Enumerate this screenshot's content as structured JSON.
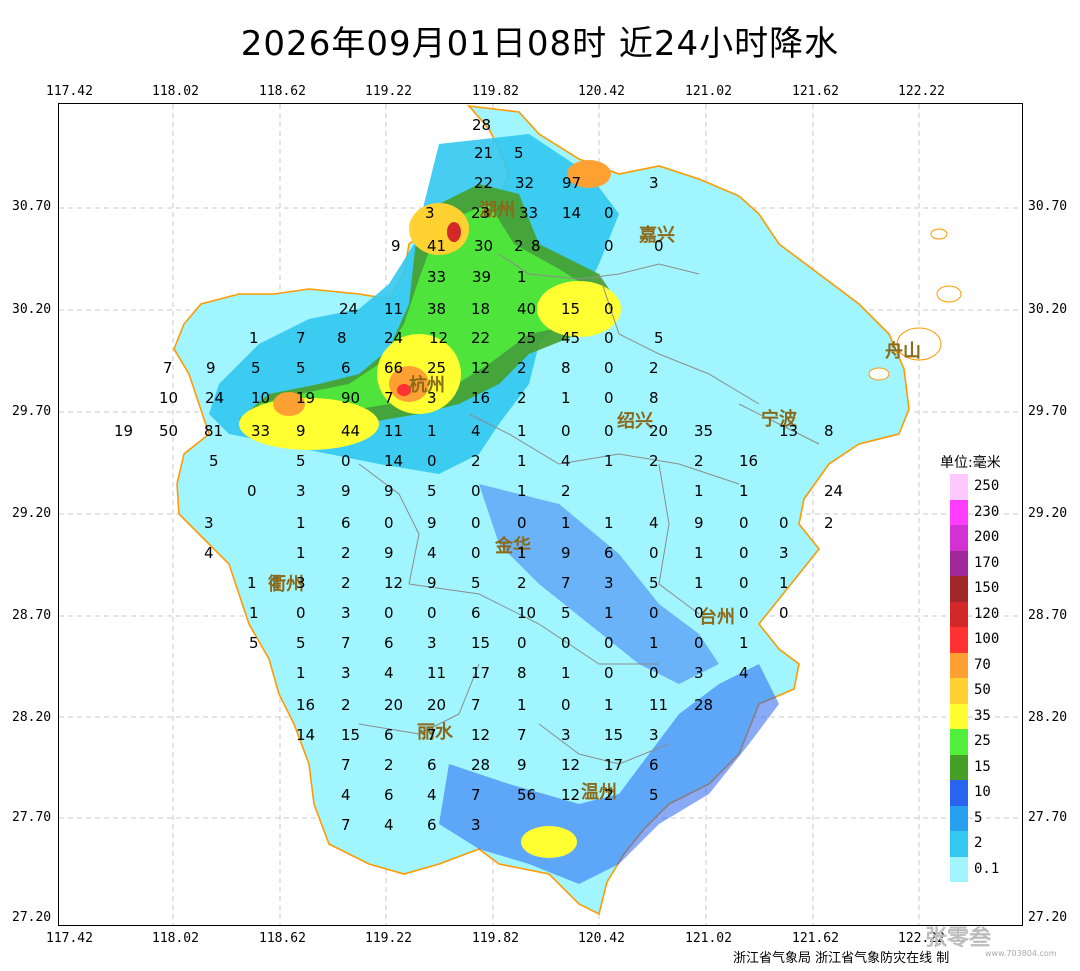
{
  "title": "2026年09月01日08时  近24小时降水",
  "lon_ticks": [
    "117.42",
    "118.02",
    "118.62",
    "119.22",
    "119.82",
    "120.42",
    "121.02",
    "121.62",
    "122.22"
  ],
  "lat_ticks": [
    "30.70",
    "30.20",
    "29.70",
    "29.20",
    "28.70",
    "28.20",
    "27.70",
    "27.20"
  ],
  "legend": {
    "title": "单位:毫米",
    "items": [
      {
        "label": "250",
        "color": "#ffc8ff"
      },
      {
        "label": "230",
        "color": "#ff3cff"
      },
      {
        "label": "200",
        "color": "#d232d2"
      },
      {
        "label": "170",
        "color": "#a0289b"
      },
      {
        "label": "150",
        "color": "#a02828"
      },
      {
        "label": "120",
        "color": "#d22828"
      },
      {
        "label": "100",
        "color": "#ff3232"
      },
      {
        "label": "70",
        "color": "#ffa032"
      },
      {
        "label": "50",
        "color": "#ffd232"
      },
      {
        "label": "35",
        "color": "#ffff32"
      },
      {
        "label": "25",
        "color": "#50f03c"
      },
      {
        "label": "15",
        "color": "#46a028"
      },
      {
        "label": "10",
        "color": "#2864f0"
      },
      {
        "label": "5",
        "color": "#28a0f0"
      },
      {
        "label": "2",
        "color": "#32c8f0"
      },
      {
        "label": "0.1",
        "color": "#a0f5ff"
      }
    ]
  },
  "cities": [
    "湖州",
    "嘉兴",
    "杭州",
    "绍兴",
    "宁波",
    "舟山",
    "衢州",
    "金华",
    "台州",
    "丽水",
    "温州"
  ],
  "station_values": [
    "28",
    "5",
    "21",
    "22",
    "32",
    "97",
    "3",
    "3",
    "23",
    "33",
    "14",
    "0",
    "9",
    "41",
    "30",
    "2",
    "8",
    "0",
    "0",
    "33",
    "39",
    "1",
    "24",
    "11",
    "38",
    "18",
    "40",
    "15",
    "0",
    "1",
    "7",
    "8",
    "24",
    "12",
    "22",
    "25",
    "45",
    "0",
    "5",
    "7",
    "9",
    "5",
    "5",
    "6",
    "66",
    "25",
    "12",
    "2",
    "8",
    "0",
    "2",
    "10",
    "24",
    "10",
    "19",
    "90",
    "7",
    "3",
    "16",
    "2",
    "1",
    "0",
    "8",
    "19",
    "50",
    "81",
    "33",
    "9",
    "44",
    "11",
    "1",
    "4",
    "1",
    "0",
    "0",
    "20",
    "35",
    "13",
    "8",
    "5",
    "5",
    "0",
    "14",
    "0",
    "2",
    "1",
    "4",
    "1",
    "2",
    "2",
    "16",
    "0",
    "3",
    "9",
    "9",
    "5",
    "0",
    "1",
    "2",
    "1",
    "1",
    "24",
    "3",
    "1",
    "6",
    "0",
    "9",
    "0",
    "0",
    "1",
    "1",
    "4",
    "9",
    "0",
    "0",
    "2",
    "4",
    "1",
    "2",
    "9",
    "4",
    "0",
    "1",
    "9",
    "6",
    "0",
    "1",
    "0",
    "3",
    "1",
    "3",
    "2",
    "12",
    "9",
    "5",
    "2",
    "7",
    "3",
    "5",
    "1",
    "0",
    "1",
    "1",
    "0",
    "3",
    "0",
    "0",
    "6",
    "10",
    "5",
    "1",
    "0",
    "0",
    "0",
    "0",
    "5",
    "5",
    "7",
    "6",
    "3",
    "15",
    "0",
    "0",
    "0",
    "1",
    "0",
    "1",
    "1",
    "3",
    "4",
    "11",
    "17",
    "8",
    "1",
    "0",
    "0",
    "3",
    "4",
    "16",
    "2",
    "20",
    "20",
    "7",
    "1",
    "0",
    "1",
    "11",
    "28",
    "14",
    "15",
    "6",
    "7",
    "12",
    "7",
    "3",
    "15",
    "3",
    "7",
    "2",
    "6",
    "28",
    "9",
    "12",
    "17",
    "6",
    "4",
    "6",
    "4",
    "7",
    "56",
    "12",
    "2",
    "5",
    "7",
    "4",
    "6",
    "3"
  ],
  "credit": "浙江省气象局  浙江省气象防灾在线  制",
  "watermark": "张零叁",
  "watermark_url": "www.703804.com"
}
